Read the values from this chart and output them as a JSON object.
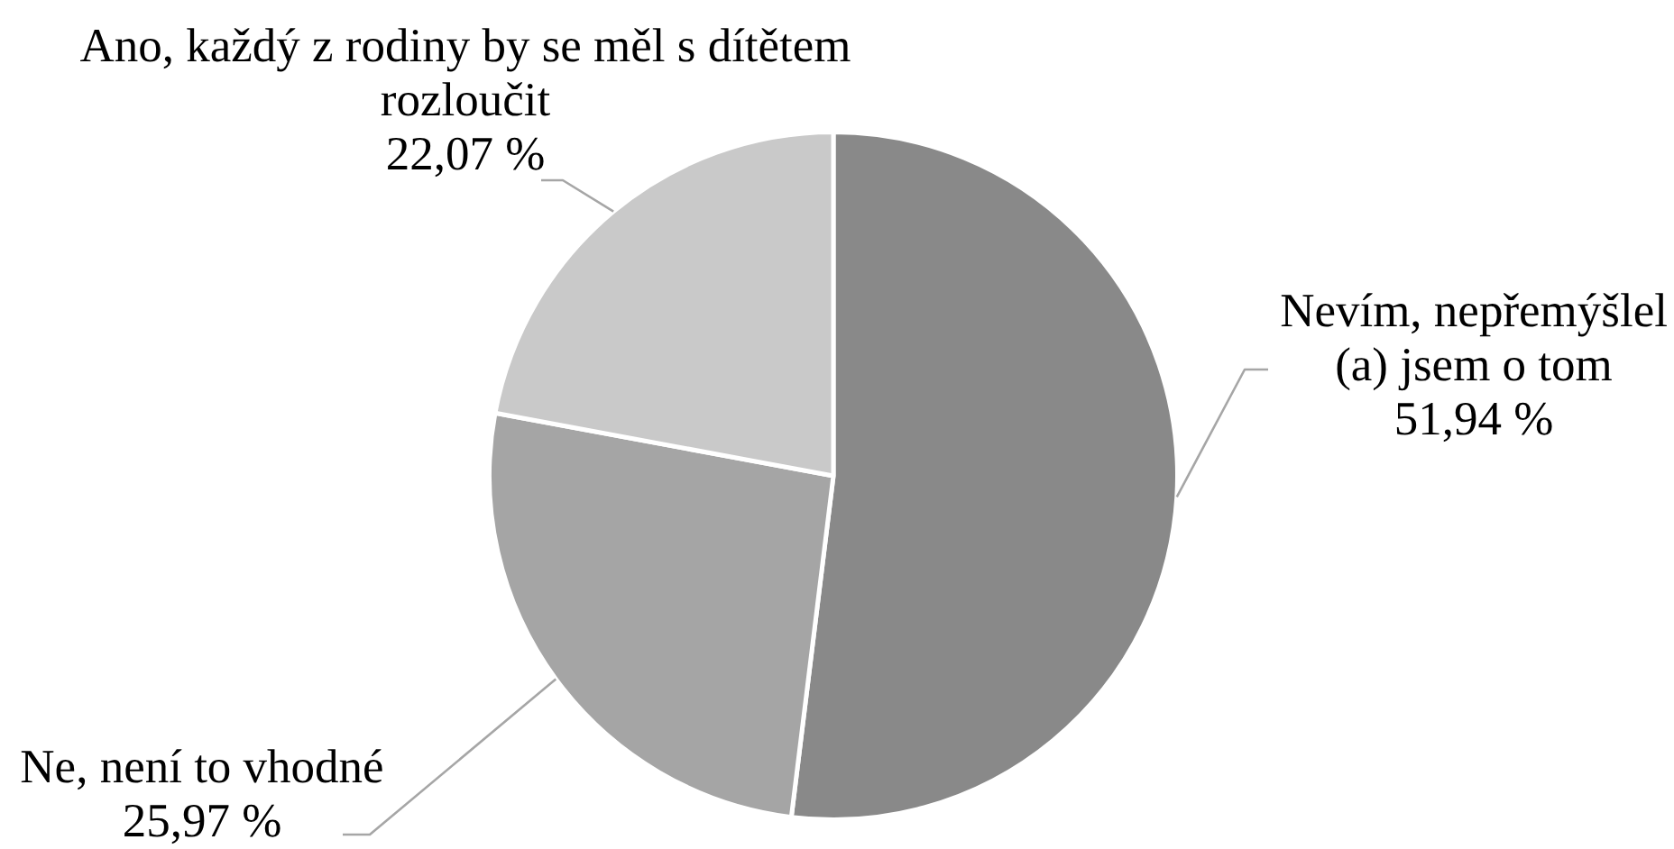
{
  "chart_data": {
    "type": "pie",
    "categories": [
      "Nevím, nepřemýšlel (a) jsem o tom",
      "Ne, není to vhodné",
      "Ano, každý z rodiny by se měl s dítětem rozloučit"
    ],
    "values": [
      51.94,
      25.97,
      22.07
    ],
    "colors": [
      "#898989",
      "#a5a5a5",
      "#c9c9c9"
    ],
    "value_labels": [
      "51,94 %",
      "25,97 %",
      "22,07 %"
    ]
  }
}
